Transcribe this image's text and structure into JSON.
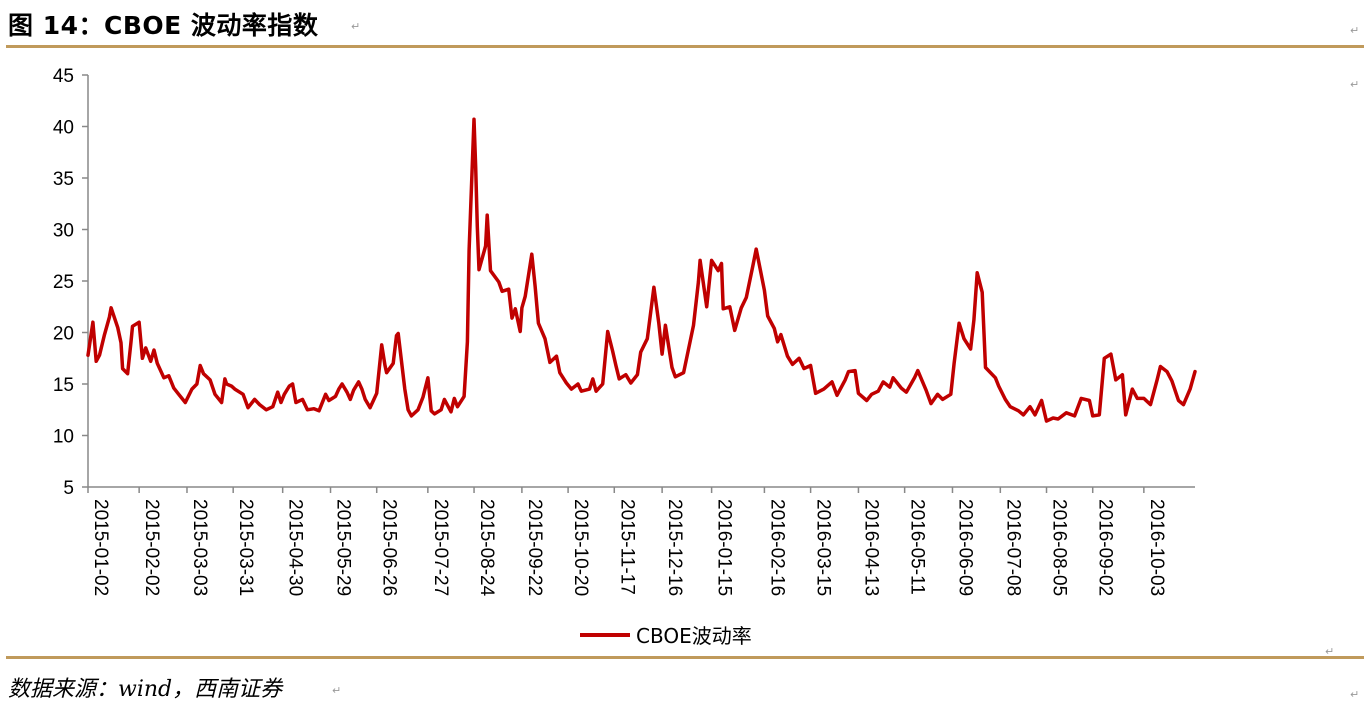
{
  "header": {
    "title": "图 14：CBOE 波动率指数"
  },
  "footer": {
    "source": "数据来源：wind，西南证券"
  },
  "para_mark": "↵",
  "colors": {
    "rule": "#c09a5b",
    "series": "#c00000",
    "axis": "#888888"
  },
  "chart_data": {
    "type": "line",
    "title": "",
    "xlabel": "",
    "ylabel": "",
    "ylim": [
      5,
      45
    ],
    "yticks": [
      5,
      10,
      15,
      20,
      25,
      30,
      35,
      40,
      45
    ],
    "grid": false,
    "legend_position": "bottom",
    "x_tick_labels": [
      "2015-01-02",
      "2015-02-02",
      "2015-03-03",
      "2015-03-31",
      "2015-04-30",
      "2015-05-29",
      "2015-06-26",
      "2015-07-27",
      "2015-08-24",
      "2015-09-22",
      "2015-10-20",
      "2015-11-17",
      "2015-12-16",
      "2016-01-15",
      "2016-02-16",
      "2016-03-15",
      "2016-04-13",
      "2016-05-11",
      "2016-06-09",
      "2016-07-08",
      "2016-08-05",
      "2016-09-02",
      "2016-10-03"
    ],
    "series": [
      {
        "name": "CBOE波动率",
        "color": "#c00000",
        "points": [
          [
            "2015-01-02",
            17.8
          ],
          [
            "2015-01-05",
            21
          ],
          [
            "2015-01-07",
            17.2
          ],
          [
            "2015-01-09",
            17.8
          ],
          [
            "2015-01-12",
            19.8
          ],
          [
            "2015-01-15",
            21.5
          ],
          [
            "2015-01-16",
            22.4
          ],
          [
            "2015-01-20",
            20.5
          ],
          [
            "2015-01-22",
            19
          ],
          [
            "2015-01-23",
            16.5
          ],
          [
            "2015-01-26",
            16
          ],
          [
            "2015-01-28",
            19
          ],
          [
            "2015-01-29",
            20.6
          ],
          [
            "2015-02-02",
            21
          ],
          [
            "2015-02-04",
            17.5
          ],
          [
            "2015-02-06",
            18.5
          ],
          [
            "2015-02-09",
            17.2
          ],
          [
            "2015-02-11",
            18.3
          ],
          [
            "2015-02-13",
            17
          ],
          [
            "2015-02-17",
            15.6
          ],
          [
            "2015-02-20",
            15.8
          ],
          [
            "2015-02-23",
            14.6
          ],
          [
            "2015-02-26",
            14
          ],
          [
            "2015-03-02",
            13.2
          ],
          [
            "2015-03-06",
            14.5
          ],
          [
            "2015-03-09",
            15
          ],
          [
            "2015-03-11",
            16.8
          ],
          [
            "2015-03-13",
            16
          ],
          [
            "2015-03-17",
            15.4
          ],
          [
            "2015-03-20",
            14
          ],
          [
            "2015-03-24",
            13.2
          ],
          [
            "2015-03-26",
            15.5
          ],
          [
            "2015-03-27",
            15
          ],
          [
            "2015-03-30",
            14.8
          ],
          [
            "2015-04-01",
            14.5
          ],
          [
            "2015-04-06",
            14
          ],
          [
            "2015-04-09",
            12.7
          ],
          [
            "2015-04-13",
            13.5
          ],
          [
            "2015-04-16",
            13
          ],
          [
            "2015-04-20",
            12.5
          ],
          [
            "2015-04-24",
            12.8
          ],
          [
            "2015-04-27",
            14.2
          ],
          [
            "2015-04-29",
            13.2
          ],
          [
            "2015-05-01",
            14
          ],
          [
            "2015-05-04",
            14.8
          ],
          [
            "2015-05-06",
            15
          ],
          [
            "2015-05-08",
            13.2
          ],
          [
            "2015-05-12",
            13.5
          ],
          [
            "2015-05-15",
            12.5
          ],
          [
            "2015-05-19",
            12.6
          ],
          [
            "2015-05-22",
            12.4
          ],
          [
            "2015-05-26",
            14
          ],
          [
            "2015-05-28",
            13.4
          ],
          [
            "2015-06-01",
            13.8
          ],
          [
            "2015-06-03",
            14.5
          ],
          [
            "2015-06-05",
            15
          ],
          [
            "2015-06-08",
            14.2
          ],
          [
            "2015-06-10",
            13.5
          ],
          [
            "2015-06-12",
            14.4
          ],
          [
            "2015-06-15",
            15.2
          ],
          [
            "2015-06-17",
            14.5
          ],
          [
            "2015-06-19",
            13.5
          ],
          [
            "2015-06-22",
            12.7
          ],
          [
            "2015-06-24",
            13.4
          ],
          [
            "2015-06-26",
            14.1
          ],
          [
            "2015-06-29",
            18.8
          ],
          [
            "2015-07-01",
            16.8
          ],
          [
            "2015-07-02",
            16.1
          ],
          [
            "2015-07-06",
            17
          ],
          [
            "2015-07-08",
            19.7
          ],
          [
            "2015-07-09",
            19.9
          ],
          [
            "2015-07-13",
            14.5
          ],
          [
            "2015-07-15",
            12.5
          ],
          [
            "2015-07-17",
            11.9
          ],
          [
            "2015-07-21",
            12.5
          ],
          [
            "2015-07-24",
            13.7
          ],
          [
            "2015-07-27",
            15.6
          ],
          [
            "2015-07-29",
            12.4
          ],
          [
            "2015-07-31",
            12.1
          ],
          [
            "2015-08-04",
            12.5
          ],
          [
            "2015-08-06",
            13.5
          ],
          [
            "2015-08-10",
            12.3
          ],
          [
            "2015-08-12",
            13.6
          ],
          [
            "2015-08-14",
            12.8
          ],
          [
            "2015-08-18",
            13.8
          ],
          [
            "2015-08-20",
            19.1
          ],
          [
            "2015-08-21",
            28
          ],
          [
            "2015-08-24",
            40.7
          ],
          [
            "2015-08-25",
            36
          ],
          [
            "2015-08-26",
            30.3
          ],
          [
            "2015-08-27",
            26.1
          ],
          [
            "2015-08-31",
            28.4
          ],
          [
            "2015-09-01",
            31.4
          ],
          [
            "2015-09-03",
            26
          ],
          [
            "2015-09-08",
            24.9
          ],
          [
            "2015-09-10",
            24
          ],
          [
            "2015-09-14",
            24.2
          ],
          [
            "2015-09-16",
            21.4
          ],
          [
            "2015-09-18",
            22.3
          ],
          [
            "2015-09-21",
            20.1
          ],
          [
            "2015-09-22",
            22.4
          ],
          [
            "2015-09-24",
            23.5
          ],
          [
            "2015-09-28",
            27.6
          ],
          [
            "2015-09-30",
            24.5
          ],
          [
            "2015-10-02",
            20.9
          ],
          [
            "2015-10-06",
            19.4
          ],
          [
            "2015-10-09",
            17.1
          ],
          [
            "2015-10-13",
            17.7
          ],
          [
            "2015-10-15",
            16.1
          ],
          [
            "2015-10-19",
            15.1
          ],
          [
            "2015-10-22",
            14.5
          ],
          [
            "2015-10-26",
            15
          ],
          [
            "2015-10-28",
            14.3
          ],
          [
            "2015-11-02",
            14.5
          ],
          [
            "2015-11-04",
            15.5
          ],
          [
            "2015-11-06",
            14.3
          ],
          [
            "2015-11-10",
            15
          ],
          [
            "2015-11-13",
            20.1
          ],
          [
            "2015-11-16",
            18.2
          ],
          [
            "2015-11-18",
            16.8
          ],
          [
            "2015-11-20",
            15.5
          ],
          [
            "2015-11-24",
            15.9
          ],
          [
            "2015-11-27",
            15.1
          ],
          [
            "2015-12-01",
            15.9
          ],
          [
            "2015-12-03",
            18.1
          ],
          [
            "2015-12-07",
            19.4
          ],
          [
            "2015-12-11",
            24.4
          ],
          [
            "2015-12-14",
            20.9
          ],
          [
            "2015-12-16",
            17.9
          ],
          [
            "2015-12-18",
            20.7
          ],
          [
            "2015-12-22",
            16.6
          ],
          [
            "2015-12-24",
            15.7
          ],
          [
            "2015-12-29",
            16.1
          ],
          [
            "2016-01-04",
            20.7
          ],
          [
            "2016-01-07",
            24.9
          ],
          [
            "2016-01-08",
            27
          ],
          [
            "2016-01-12",
            22.5
          ],
          [
            "2016-01-15",
            27
          ],
          [
            "2016-01-19",
            26
          ],
          [
            "2016-01-21",
            26.7
          ],
          [
            "2016-01-22",
            22.3
          ],
          [
            "2016-01-26",
            22.5
          ],
          [
            "2016-01-29",
            20.2
          ],
          [
            "2016-02-02",
            22.4
          ],
          [
            "2016-02-05",
            23.4
          ],
          [
            "2016-02-09",
            26.5
          ],
          [
            "2016-02-11",
            28.1
          ],
          [
            "2016-02-16",
            24.1
          ],
          [
            "2016-02-18",
            21.6
          ],
          [
            "2016-02-22",
            20.4
          ],
          [
            "2016-02-24",
            19.1
          ],
          [
            "2016-02-26",
            19.8
          ],
          [
            "2016-03-01",
            17.7
          ],
          [
            "2016-03-04",
            16.9
          ],
          [
            "2016-03-08",
            17.5
          ],
          [
            "2016-03-11",
            16.5
          ],
          [
            "2016-03-15",
            16.8
          ],
          [
            "2016-03-18",
            14.1
          ],
          [
            "2016-03-23",
            14.5
          ],
          [
            "2016-03-28",
            15.2
          ],
          [
            "2016-03-31",
            13.9
          ],
          [
            "2016-04-05",
            15.4
          ],
          [
            "2016-04-07",
            16.2
          ],
          [
            "2016-04-11",
            16.3
          ],
          [
            "2016-04-13",
            14.1
          ],
          [
            "2016-04-18",
            13.4
          ],
          [
            "2016-04-21",
            14
          ],
          [
            "2016-04-25",
            14.3
          ],
          [
            "2016-04-28",
            15.2
          ],
          [
            "2016-05-02",
            14.7
          ],
          [
            "2016-05-04",
            15.6
          ],
          [
            "2016-05-09",
            14.6
          ],
          [
            "2016-05-12",
            14.2
          ],
          [
            "2016-05-17",
            15.6
          ],
          [
            "2016-05-19",
            16.3
          ],
          [
            "2016-05-24",
            14.4
          ],
          [
            "2016-05-27",
            13.1
          ],
          [
            "2016-05-31",
            14
          ],
          [
            "2016-06-03",
            13.5
          ],
          [
            "2016-06-08",
            14
          ],
          [
            "2016-06-10",
            17
          ],
          [
            "2016-06-13",
            20.9
          ],
          [
            "2016-06-16",
            19.4
          ],
          [
            "2016-06-20",
            18.4
          ],
          [
            "2016-06-22",
            21.2
          ],
          [
            "2016-06-24",
            25.8
          ],
          [
            "2016-06-27",
            23.9
          ],
          [
            "2016-06-29",
            16.6
          ],
          [
            "2016-07-05",
            15.6
          ],
          [
            "2016-07-07",
            14.8
          ],
          [
            "2016-07-11",
            13.5
          ],
          [
            "2016-07-14",
            12.8
          ],
          [
            "2016-07-19",
            12.4
          ],
          [
            "2016-07-22",
            12
          ],
          [
            "2016-07-26",
            12.8
          ],
          [
            "2016-07-29",
            12
          ],
          [
            "2016-08-02",
            13.4
          ],
          [
            "2016-08-05",
            11.4
          ],
          [
            "2016-08-09",
            11.7
          ],
          [
            "2016-08-12",
            11.6
          ],
          [
            "2016-08-17",
            12.2
          ],
          [
            "2016-08-22",
            11.9
          ],
          [
            "2016-08-26",
            13.6
          ],
          [
            "2016-08-31",
            13.4
          ],
          [
            "2016-09-02",
            11.9
          ],
          [
            "2016-09-06",
            12
          ],
          [
            "2016-09-09",
            17.5
          ],
          [
            "2016-09-13",
            17.9
          ],
          [
            "2016-09-16",
            15.4
          ],
          [
            "2016-09-20",
            15.9
          ],
          [
            "2016-09-22",
            12
          ],
          [
            "2016-09-26",
            14.5
          ],
          [
            "2016-09-29",
            13.6
          ],
          [
            "2016-10-03",
            13.6
          ],
          [
            "2016-10-07",
            13
          ],
          [
            "2016-10-11",
            15.4
          ],
          [
            "2016-10-13",
            16.7
          ],
          [
            "2016-10-17",
            16.2
          ],
          [
            "2016-10-20",
            15.3
          ],
          [
            "2016-10-24",
            13.4
          ],
          [
            "2016-10-27",
            13
          ],
          [
            "2016-10-31",
            14.5
          ],
          [
            "2016-11-03",
            16.2
          ]
        ]
      }
    ]
  }
}
